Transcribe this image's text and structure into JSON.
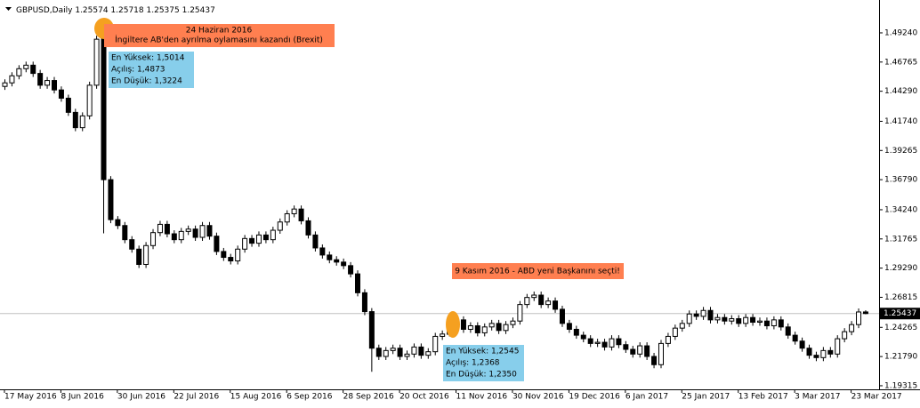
{
  "chart_data": {
    "type": "candlestick",
    "symbol": "GBPUSD,Daily",
    "categories": [
      "17 May 2016",
      null,
      null,
      null,
      null,
      null,
      null,
      null,
      "8 Jun 2016",
      null,
      null,
      null,
      null,
      null,
      null,
      null,
      "30 Jun 2016",
      null,
      null,
      null,
      null,
      null,
      null,
      null,
      "22 Jul 2016",
      null,
      null,
      null,
      null,
      null,
      null,
      null,
      "15 Aug 2016",
      null,
      null,
      null,
      null,
      null,
      null,
      null,
      "6 Sep 2016",
      null,
      null,
      null,
      null,
      null,
      null,
      null,
      "28 Sep 2016",
      null,
      null,
      null,
      null,
      null,
      null,
      null,
      "20 Oct 2016",
      null,
      null,
      null,
      null,
      null,
      null,
      null,
      "11 Nov 2016",
      null,
      null,
      null,
      null,
      null,
      null,
      null,
      "30 Nov 2016",
      null,
      null,
      null,
      null,
      null,
      null,
      null,
      "19 Dec 2016",
      null,
      null,
      null,
      null,
      null,
      null,
      null,
      "6 Jan 2017",
      null,
      null,
      null,
      null,
      null,
      null,
      null,
      "25 Jan 2017",
      null,
      null,
      null,
      null,
      null,
      null,
      null,
      "13 Feb 2017",
      null,
      null,
      null,
      null,
      null,
      null,
      null,
      "3 Mar 2017",
      null,
      null,
      null,
      null,
      null,
      null,
      null,
      "23 Mar 2017",
      null,
      null
    ],
    "open": [
      1.447,
      1.45,
      1.456,
      1.462,
      1.465,
      1.458,
      1.448,
      1.452,
      1.444,
      1.437,
      1.425,
      1.412,
      1.422,
      1.448,
      1.4873,
      1.3679,
      1.334,
      1.329,
      1.317,
      1.309,
      1.296,
      1.312,
      1.323,
      1.33,
      1.322,
      1.317,
      1.324,
      1.326,
      1.319,
      1.329,
      1.32,
      1.307,
      1.302,
      1.299,
      1.309,
      1.318,
      1.314,
      1.321,
      1.317,
      1.325,
      1.332,
      1.339,
      1.343,
      1.333,
      1.321,
      1.31,
      1.304,
      1.3,
      1.298,
      1.295,
      1.288,
      1.272,
      1.256,
      1.225,
      1.218,
      1.223,
      1.225,
      1.218,
      1.22,
      1.226,
      1.219,
      1.222,
      1.235,
      1.2368,
      1.248,
      1.249,
      1.241,
      1.244,
      1.238,
      1.243,
      1.246,
      1.24,
      1.245,
      1.248,
      1.262,
      1.268,
      1.27,
      1.262,
      1.265,
      1.258,
      1.246,
      1.241,
      1.236,
      1.233,
      1.229,
      1.23,
      1.226,
      1.233,
      1.228,
      1.224,
      1.22,
      1.227,
      1.218,
      1.211,
      1.229,
      1.235,
      1.242,
      1.246,
      1.254,
      1.252,
      1.257,
      1.249,
      1.251,
      1.248,
      1.25,
      1.246,
      1.251,
      1.247,
      1.248,
      1.244,
      1.249,
      1.243,
      1.236,
      1.231,
      1.225,
      1.219,
      1.217,
      1.223,
      1.22,
      1.233,
      1.239,
      1.245,
      1.25574
    ],
    "high": [
      1.453,
      1.459,
      1.465,
      1.468,
      1.468,
      1.461,
      1.455,
      1.455,
      1.447,
      1.44,
      1.428,
      1.425,
      1.451,
      1.49,
      1.5014,
      1.3709,
      1.337,
      1.332,
      1.32,
      1.312,
      1.315,
      1.326,
      1.333,
      1.333,
      1.325,
      1.327,
      1.329,
      1.329,
      1.332,
      1.332,
      1.323,
      1.31,
      1.305,
      1.312,
      1.321,
      1.321,
      1.324,
      1.324,
      1.328,
      1.335,
      1.342,
      1.346,
      1.346,
      1.336,
      1.324,
      1.313,
      1.307,
      1.303,
      1.301,
      1.298,
      1.291,
      1.275,
      1.259,
      1.228,
      1.226,
      1.228,
      1.228,
      1.223,
      1.229,
      1.229,
      1.225,
      1.238,
      1.24,
      1.2545,
      1.252,
      1.252,
      1.247,
      1.247,
      1.246,
      1.249,
      1.249,
      1.248,
      1.251,
      1.265,
      1.271,
      1.273,
      1.273,
      1.268,
      1.268,
      1.261,
      1.249,
      1.244,
      1.239,
      1.236,
      1.233,
      1.233,
      1.236,
      1.236,
      1.231,
      1.227,
      1.23,
      1.23,
      1.221,
      1.232,
      1.238,
      1.245,
      1.249,
      1.257,
      1.257,
      1.26,
      1.26,
      1.254,
      1.254,
      1.253,
      1.253,
      1.254,
      1.254,
      1.251,
      1.251,
      1.252,
      1.252,
      1.246,
      1.239,
      1.234,
      1.228,
      1.222,
      1.226,
      1.226,
      1.236,
      1.242,
      1.248,
      1.2587,
      1.25718
    ],
    "low": [
      1.444,
      1.447,
      1.453,
      1.459,
      1.455,
      1.445,
      1.445,
      1.441,
      1.434,
      1.422,
      1.409,
      1.409,
      1.419,
      1.445,
      1.3224,
      1.331,
      1.326,
      1.314,
      1.306,
      1.293,
      1.293,
      1.309,
      1.32,
      1.319,
      1.314,
      1.314,
      1.321,
      1.316,
      1.316,
      1.317,
      1.304,
      1.299,
      1.296,
      1.296,
      1.306,
      1.311,
      1.311,
      1.314,
      1.314,
      1.322,
      1.329,
      1.336,
      1.33,
      1.318,
      1.307,
      1.301,
      1.297,
      1.295,
      1.292,
      1.285,
      1.269,
      1.253,
      1.205,
      1.215,
      1.215,
      1.22,
      1.215,
      1.215,
      1.217,
      1.216,
      1.216,
      1.219,
      1.232,
      1.235,
      1.245,
      1.238,
      1.238,
      1.235,
      1.235,
      1.24,
      1.237,
      1.237,
      1.242,
      1.245,
      1.259,
      1.265,
      1.259,
      1.259,
      1.255,
      1.243,
      1.238,
      1.233,
      1.23,
      1.226,
      1.226,
      1.223,
      1.223,
      1.225,
      1.221,
      1.217,
      1.217,
      1.215,
      1.208,
      1.208,
      1.226,
      1.232,
      1.239,
      1.243,
      1.249,
      1.249,
      1.246,
      1.246,
      1.245,
      1.245,
      1.243,
      1.243,
      1.244,
      1.244,
      1.241,
      1.241,
      1.24,
      1.233,
      1.228,
      1.222,
      1.216,
      1.214,
      1.214,
      1.217,
      1.217,
      1.23,
      1.236,
      1.242,
      1.25375
    ],
    "close": [
      1.45,
      1.456,
      1.462,
      1.465,
      1.458,
      1.448,
      1.452,
      1.444,
      1.437,
      1.425,
      1.412,
      1.422,
      1.448,
      1.487,
      1.3679,
      1.334,
      1.329,
      1.317,
      1.309,
      1.296,
      1.312,
      1.323,
      1.33,
      1.322,
      1.317,
      1.324,
      1.326,
      1.319,
      1.329,
      1.32,
      1.307,
      1.302,
      1.299,
      1.309,
      1.318,
      1.314,
      1.321,
      1.317,
      1.325,
      1.332,
      1.339,
      1.343,
      1.333,
      1.321,
      1.31,
      1.304,
      1.3,
      1.298,
      1.295,
      1.288,
      1.272,
      1.256,
      1.225,
      1.218,
      1.223,
      1.225,
      1.218,
      1.22,
      1.226,
      1.219,
      1.222,
      1.235,
      1.237,
      1.248,
      1.249,
      1.241,
      1.244,
      1.238,
      1.243,
      1.246,
      1.24,
      1.245,
      1.248,
      1.262,
      1.268,
      1.27,
      1.262,
      1.265,
      1.258,
      1.246,
      1.241,
      1.236,
      1.233,
      1.229,
      1.23,
      1.226,
      1.233,
      1.228,
      1.224,
      1.22,
      1.227,
      1.218,
      1.211,
      1.229,
      1.235,
      1.242,
      1.246,
      1.254,
      1.252,
      1.257,
      1.249,
      1.251,
      1.248,
      1.25,
      1.246,
      1.251,
      1.247,
      1.248,
      1.244,
      1.249,
      1.243,
      1.236,
      1.231,
      1.225,
      1.219,
      1.217,
      1.223,
      1.22,
      1.233,
      1.239,
      1.245,
      1.2557,
      1.25437
    ],
    "up_color": "#ffffff",
    "down_color": "#000000",
    "wick_color": "#000000",
    "ylim": [
      1.1901,
      1.5165
    ],
    "yticks": [
      {
        "value": 1.4924,
        "label": "1.49240"
      },
      1.46765,
      {
        "value": 1.4429,
        "label": "1.44290"
      },
      {
        "value": 1.4174,
        "label": "1.41740"
      },
      1.39265,
      {
        "value": 1.3679,
        "label": "1.36790"
      },
      {
        "value": 1.3424,
        "label": "1.34240"
      },
      1.31765,
      {
        "value": 1.2929,
        "label": "1.29290"
      },
      1.26815,
      1.24265,
      {
        "value": 1.2179,
        "label": "1.21790"
      },
      1.19315
    ],
    "annotations": [
      {
        "title": "24 Haziran 2016",
        "text": "İngiltere AB'den ayrılma oylamasını kazandı (Brexit)",
        "details": [
          "En Yüksek: 1,5014",
          "Açılış: 1,4873",
          "En Düşük: 1,3224"
        ]
      },
      {
        "text": "9 Kasım 2016 - ABD yeni Başkanını seçti!",
        "details": [
          "En Yüksek: 1,2545",
          "Açılış: 1,2368",
          "En Düşük: 1,2350"
        ]
      }
    ]
  }
}
